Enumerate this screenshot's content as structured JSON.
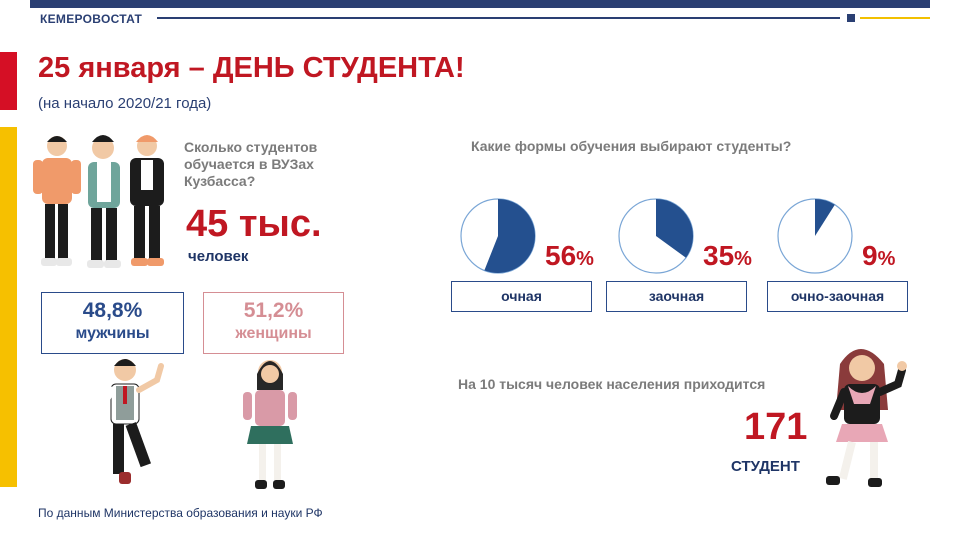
{
  "header": {
    "org_name": "КЕМЕРОВОСТАТ",
    "title": "25 января – ДЕНЬ СТУДЕНТА!",
    "subtitle": "(на начало 2020/21 года)"
  },
  "students": {
    "question": "Сколько студентов обучается в ВУЗах Кузбасса?",
    "value": "45 тыс.",
    "unit": "человек"
  },
  "gender": {
    "men": {
      "percent": "48,8%",
      "label": "мужчины"
    },
    "women": {
      "percent": "51,2%",
      "label": "женщины"
    }
  },
  "study_forms": {
    "question": "Какие формы обучения выбирают студенты?",
    "items": [
      {
        "label": "очная",
        "value": 56,
        "value_text": "56",
        "sign": "%"
      },
      {
        "label": "заочная",
        "value": 35,
        "value_text": "35",
        "sign": "%"
      },
      {
        "label": "очно-заочная",
        "value": 9,
        "value_text": "9",
        "sign": "%"
      }
    ]
  },
  "per_10k": {
    "question": "На 10 тысяч человек населения приходится",
    "value": "171",
    "unit": "СТУДЕНТ"
  },
  "source": "По данным Министерства образования и науки РФ",
  "colors": {
    "navy": "#2a3f73",
    "red": "#c01722",
    "pie_fill": "#24508f",
    "pie_border": "#7aa6d6",
    "gray": "#7b7b7b",
    "women": "#d58e94",
    "accent_gold": "#f2c000"
  },
  "illustrations": [
    "students-group-icon",
    "boy-student-icon",
    "girl-student-icon",
    "girl-waving-icon"
  ]
}
